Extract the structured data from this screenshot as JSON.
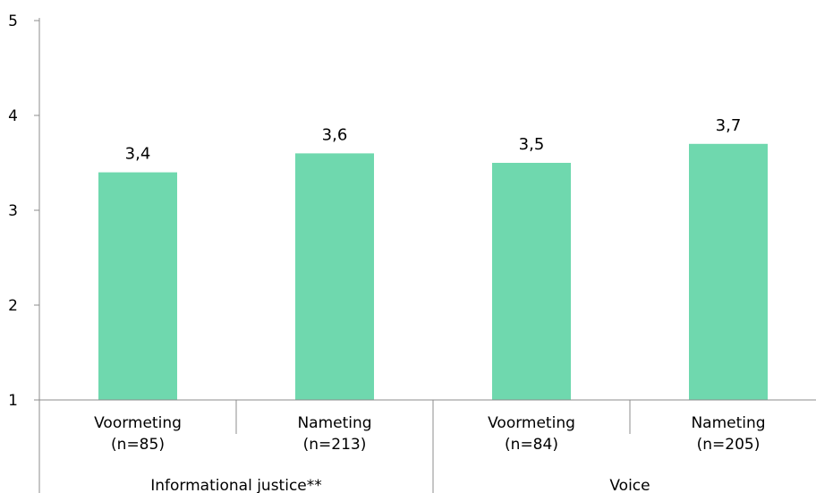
{
  "chart_data": {
    "type": "bar",
    "categories": [
      {
        "line1": "Voormeting",
        "line2": "(n=85)"
      },
      {
        "line1": "Nameting",
        "line2": "(n=213)"
      },
      {
        "line1": "Voormeting",
        "line2": "(n=84)"
      },
      {
        "line1": "Nameting",
        "line2": "(n=205)"
      }
    ],
    "groups": [
      {
        "label": "Informational justice**",
        "span": [
          0,
          1
        ]
      },
      {
        "label": "Voice",
        "span": [
          2,
          3
        ]
      }
    ],
    "values": [
      3.4,
      3.6,
      3.5,
      3.7
    ],
    "value_labels": [
      "3,4",
      "3,6",
      "3,5",
      "3,7"
    ],
    "ylim": [
      1,
      5
    ],
    "yticks": [
      1,
      2,
      3,
      4,
      5
    ],
    "ytick_labels": [
      "1",
      "2",
      "3",
      "4",
      "5"
    ],
    "title": "",
    "xlabel": "",
    "ylabel": "",
    "grid": false,
    "legend": "none",
    "colors": {
      "bar": "#6fd8ae",
      "axis": "#8c8c8c",
      "text": "#000000"
    }
  }
}
